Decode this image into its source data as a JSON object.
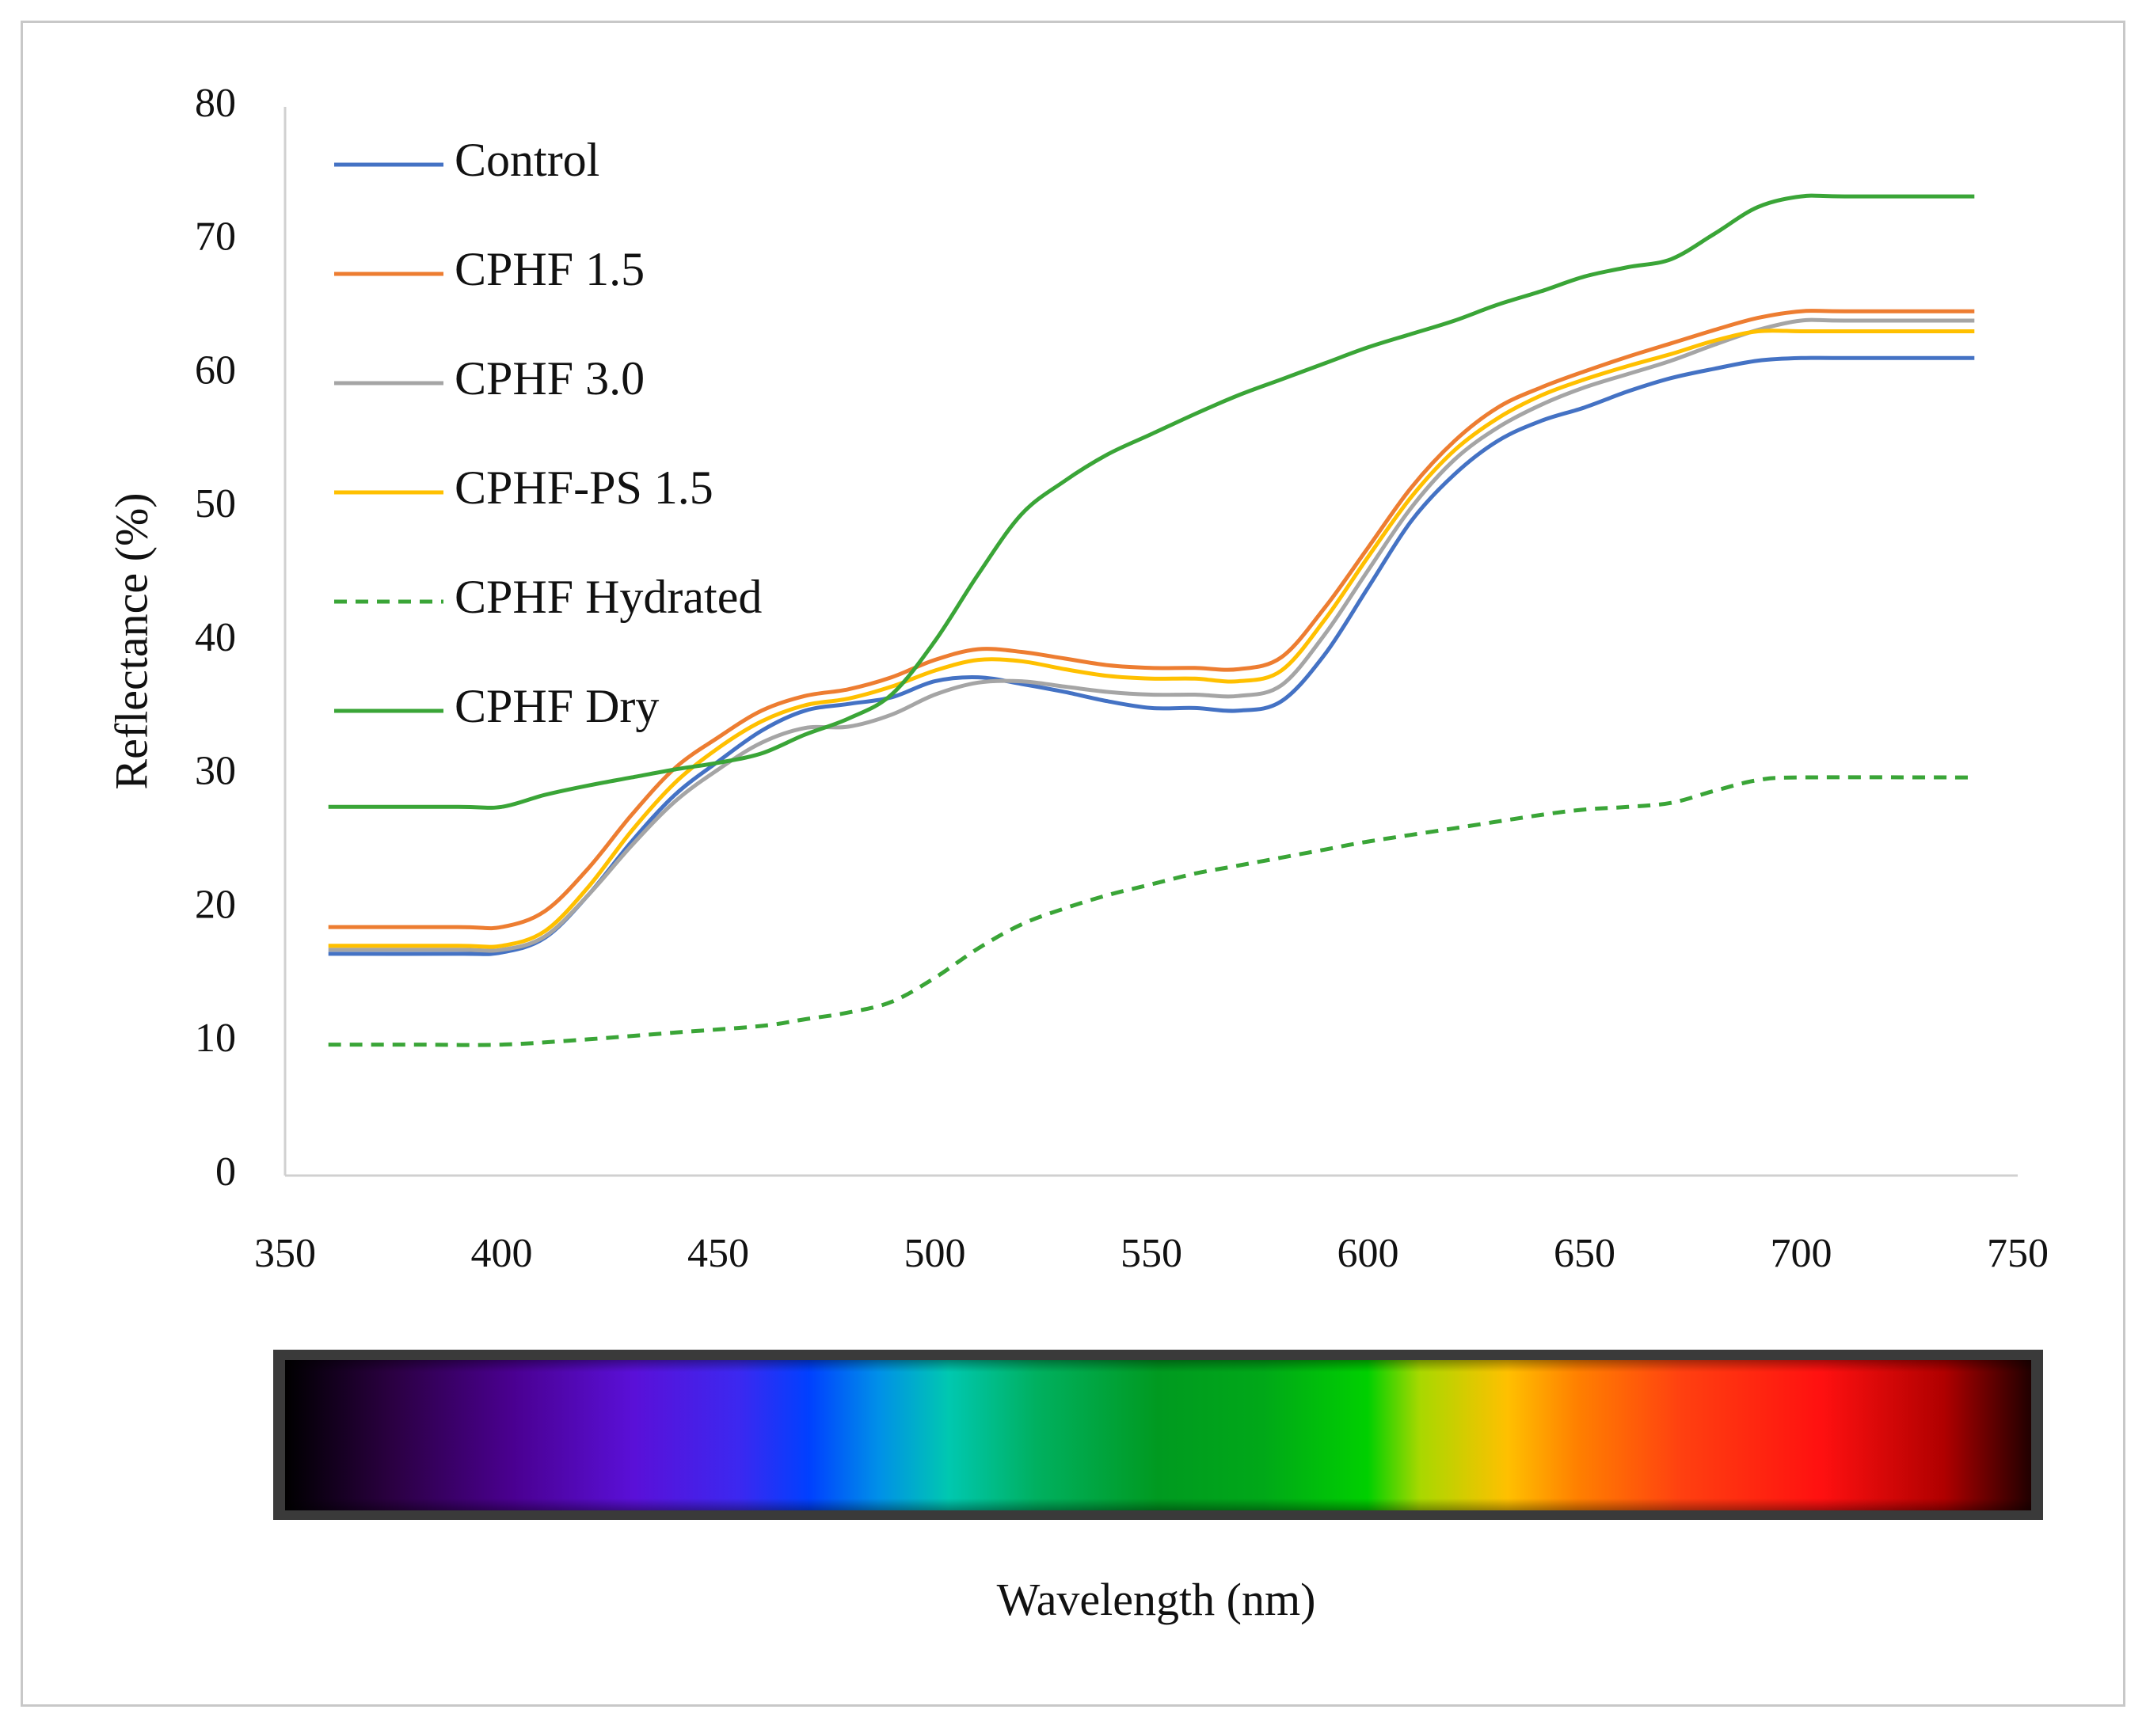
{
  "chart_data": {
    "type": "line",
    "title": "",
    "xlabel": "Wavelength (nm)",
    "ylabel": "Reflectance (%)",
    "xlim": [
      350,
      750
    ],
    "ylim": [
      0,
      80
    ],
    "x_ticks": [
      "350",
      "400",
      "450",
      "500",
      "550",
      "600",
      "650",
      "700",
      "750"
    ],
    "y_ticks": [
      "0",
      "10",
      "20",
      "30",
      "40",
      "50",
      "60",
      "70",
      "80"
    ],
    "grid": false,
    "legend_position": "top-left",
    "spectrum_bar": true,
    "series": [
      {
        "name": "Control",
        "color": "#4472c4",
        "dash": "solid",
        "points": [
          [
            360,
            16.6
          ],
          [
            390,
            16.6
          ],
          [
            400,
            16.7
          ],
          [
            410,
            17.8
          ],
          [
            420,
            21
          ],
          [
            430,
            25
          ],
          [
            440,
            28.5
          ],
          [
            450,
            31
          ],
          [
            460,
            33.3
          ],
          [
            470,
            34.8
          ],
          [
            480,
            35.3
          ],
          [
            490,
            35.8
          ],
          [
            500,
            37
          ],
          [
            510,
            37.3
          ],
          [
            520,
            36.8
          ],
          [
            530,
            36.2
          ],
          [
            540,
            35.5
          ],
          [
            550,
            35
          ],
          [
            560,
            35
          ],
          [
            570,
            34.8
          ],
          [
            580,
            35.5
          ],
          [
            590,
            39
          ],
          [
            600,
            44
          ],
          [
            610,
            49
          ],
          [
            620,
            52.5
          ],
          [
            630,
            55
          ],
          [
            640,
            56.5
          ],
          [
            650,
            57.5
          ],
          [
            660,
            58.7
          ],
          [
            670,
            59.7
          ],
          [
            680,
            60.4
          ],
          [
            690,
            61
          ],
          [
            700,
            61.2
          ],
          [
            710,
            61.2
          ],
          [
            740,
            61.2
          ]
        ]
      },
      {
        "name": "CPHF 1.5",
        "color": "#ed7d31",
        "dash": "solid",
        "points": [
          [
            360,
            18.6
          ],
          [
            390,
            18.6
          ],
          [
            400,
            18.6
          ],
          [
            410,
            19.8
          ],
          [
            420,
            23
          ],
          [
            430,
            27
          ],
          [
            440,
            30.5
          ],
          [
            450,
            32.8
          ],
          [
            460,
            34.8
          ],
          [
            470,
            35.9
          ],
          [
            480,
            36.4
          ],
          [
            490,
            37.3
          ],
          [
            500,
            38.6
          ],
          [
            510,
            39.4
          ],
          [
            520,
            39.2
          ],
          [
            530,
            38.7
          ],
          [
            540,
            38.2
          ],
          [
            550,
            38
          ],
          [
            560,
            38
          ],
          [
            570,
            37.9
          ],
          [
            580,
            38.8
          ],
          [
            590,
            42.5
          ],
          [
            600,
            47
          ],
          [
            610,
            51.5
          ],
          [
            620,
            55
          ],
          [
            630,
            57.5
          ],
          [
            640,
            59
          ],
          [
            650,
            60.2
          ],
          [
            660,
            61.3
          ],
          [
            670,
            62.3
          ],
          [
            680,
            63.3
          ],
          [
            690,
            64.2
          ],
          [
            700,
            64.7
          ],
          [
            710,
            64.7
          ],
          [
            740,
            64.7
          ]
        ]
      },
      {
        "name": "CPHF 3.0",
        "color": "#a5a5a5",
        "dash": "solid",
        "points": [
          [
            360,
            16.9
          ],
          [
            390,
            16.9
          ],
          [
            400,
            16.9
          ],
          [
            410,
            17.9
          ],
          [
            420,
            21
          ],
          [
            430,
            24.7
          ],
          [
            440,
            28
          ],
          [
            450,
            30.4
          ],
          [
            460,
            32.4
          ],
          [
            470,
            33.5
          ],
          [
            480,
            33.6
          ],
          [
            490,
            34.5
          ],
          [
            500,
            36
          ],
          [
            510,
            36.9
          ],
          [
            520,
            37
          ],
          [
            530,
            36.6
          ],
          [
            540,
            36.2
          ],
          [
            550,
            36
          ],
          [
            560,
            36
          ],
          [
            570,
            35.9
          ],
          [
            580,
            36.7
          ],
          [
            590,
            40.5
          ],
          [
            600,
            45.3
          ],
          [
            610,
            50
          ],
          [
            620,
            53.6
          ],
          [
            630,
            56
          ],
          [
            640,
            57.7
          ],
          [
            650,
            59
          ],
          [
            660,
            60
          ],
          [
            670,
            61
          ],
          [
            680,
            62.2
          ],
          [
            690,
            63.3
          ],
          [
            700,
            64
          ],
          [
            710,
            64
          ],
          [
            740,
            64
          ]
        ]
      },
      {
        "name": "CPHF-PS 1.5",
        "color": "#ffc000",
        "dash": "solid",
        "points": [
          [
            360,
            17.2
          ],
          [
            390,
            17.2
          ],
          [
            400,
            17.2
          ],
          [
            410,
            18.3
          ],
          [
            420,
            21.6
          ],
          [
            430,
            25.8
          ],
          [
            440,
            29.4
          ],
          [
            450,
            32
          ],
          [
            460,
            34
          ],
          [
            470,
            35.2
          ],
          [
            480,
            35.7
          ],
          [
            490,
            36.6
          ],
          [
            500,
            37.8
          ],
          [
            510,
            38.6
          ],
          [
            520,
            38.5
          ],
          [
            530,
            37.9
          ],
          [
            540,
            37.4
          ],
          [
            550,
            37.2
          ],
          [
            560,
            37.2
          ],
          [
            570,
            37
          ],
          [
            580,
            37.8
          ],
          [
            590,
            41.6
          ],
          [
            600,
            46.3
          ],
          [
            610,
            50.8
          ],
          [
            620,
            54.3
          ],
          [
            630,
            56.7
          ],
          [
            640,
            58.4
          ],
          [
            650,
            59.6
          ],
          [
            660,
            60.6
          ],
          [
            670,
            61.5
          ],
          [
            680,
            62.5
          ],
          [
            690,
            63.2
          ],
          [
            700,
            63.2
          ],
          [
            710,
            63.2
          ],
          [
            740,
            63.2
          ]
        ]
      },
      {
        "name": "CPHF Hydrated",
        "color": "#3aa537",
        "dash": "dashed",
        "points": [
          [
            360,
            9.8
          ],
          [
            380,
            9.8
          ],
          [
            400,
            9.8
          ],
          [
            420,
            10.2
          ],
          [
            440,
            10.7
          ],
          [
            460,
            11.2
          ],
          [
            470,
            11.7
          ],
          [
            480,
            12.2
          ],
          [
            490,
            13
          ],
          [
            500,
            14.8
          ],
          [
            510,
            17
          ],
          [
            520,
            18.8
          ],
          [
            530,
            20
          ],
          [
            540,
            21
          ],
          [
            550,
            21.8
          ],
          [
            560,
            22.6
          ],
          [
            570,
            23.2
          ],
          [
            580,
            23.8
          ],
          [
            590,
            24.4
          ],
          [
            600,
            25
          ],
          [
            620,
            26
          ],
          [
            640,
            27
          ],
          [
            650,
            27.4
          ],
          [
            660,
            27.6
          ],
          [
            670,
            27.9
          ],
          [
            680,
            28.8
          ],
          [
            690,
            29.6
          ],
          [
            700,
            29.8
          ],
          [
            740,
            29.8
          ]
        ]
      },
      {
        "name": "CPHF Dry",
        "color": "#3aa537",
        "dash": "solid",
        "points": [
          [
            360,
            27.6
          ],
          [
            390,
            27.6
          ],
          [
            400,
            27.6
          ],
          [
            410,
            28.5
          ],
          [
            420,
            29.2
          ],
          [
            430,
            29.8
          ],
          [
            440,
            30.4
          ],
          [
            450,
            30.9
          ],
          [
            460,
            31.6
          ],
          [
            470,
            33
          ],
          [
            480,
            34.2
          ],
          [
            490,
            36
          ],
          [
            500,
            40
          ],
          [
            510,
            45
          ],
          [
            520,
            49.5
          ],
          [
            530,
            52
          ],
          [
            540,
            54
          ],
          [
            550,
            55.5
          ],
          [
            560,
            57
          ],
          [
            570,
            58.4
          ],
          [
            580,
            59.6
          ],
          [
            590,
            60.8
          ],
          [
            600,
            62
          ],
          [
            610,
            63
          ],
          [
            620,
            64
          ],
          [
            630,
            65.2
          ],
          [
            640,
            66.2
          ],
          [
            650,
            67.3
          ],
          [
            660,
            68
          ],
          [
            670,
            68.6
          ],
          [
            680,
            70.5
          ],
          [
            690,
            72.5
          ],
          [
            700,
            73.3
          ],
          [
            710,
            73.3
          ],
          [
            740,
            73.3
          ]
        ]
      }
    ]
  }
}
